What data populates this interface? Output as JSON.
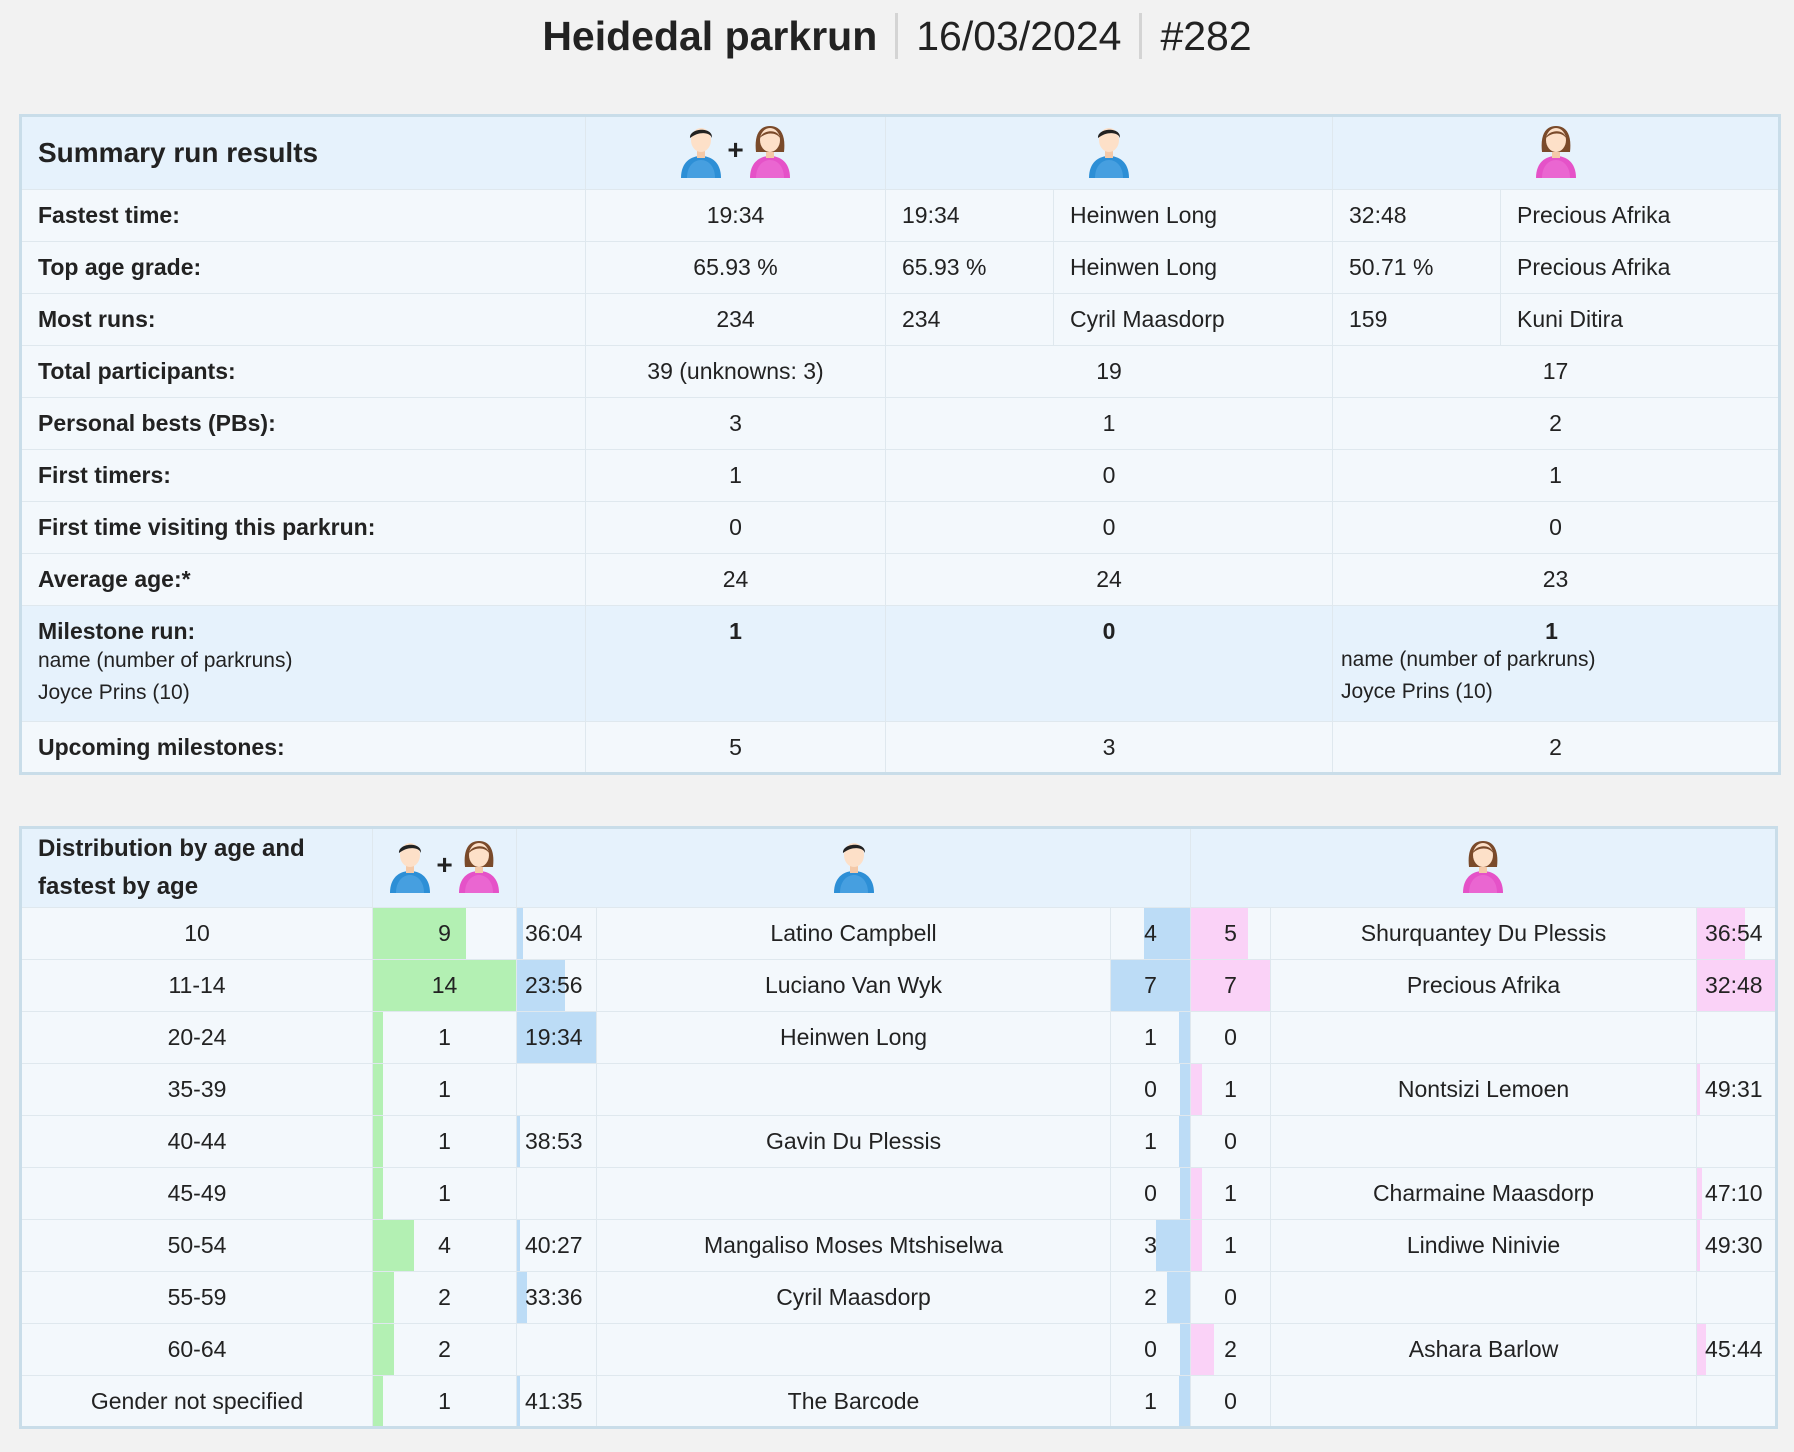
{
  "header": {
    "event_name": "Heidedal parkrun",
    "date": "16/03/2024",
    "event_number": "#282"
  },
  "summary": {
    "title": "Summary run results",
    "plus": "+",
    "rows": [
      {
        "label": "Fastest time:",
        "all": "19:34",
        "m_val": "19:34",
        "m_name": "Heinwen Long",
        "f_val": "32:48",
        "f_name": "Precious Afrika"
      },
      {
        "label": "Top age grade:",
        "all": "65.93 %",
        "m_val": "65.93 %",
        "m_name": "Heinwen Long",
        "f_val": "50.71 %",
        "f_name": "Precious Afrika"
      },
      {
        "label": "Most runs:",
        "all": "234",
        "m_val": "234",
        "m_name": "Cyril Maasdorp",
        "f_val": "159",
        "f_name": "Kuni Ditira"
      },
      {
        "label": "Total participants:",
        "all": "39 (unknowns: 3)",
        "m": "19",
        "f": "17"
      },
      {
        "label": "Personal bests (PBs):",
        "all": "3",
        "m": "1",
        "f": "2"
      },
      {
        "label": "First timers:",
        "all": "1",
        "m": "0",
        "f": "1"
      },
      {
        "label": "First time visiting this parkrun:",
        "all": "0",
        "m": "0",
        "f": "0"
      },
      {
        "label": "Average age:*",
        "all": "24",
        "m": "24",
        "f": "23"
      }
    ],
    "milestone": {
      "label": "Milestone run:",
      "sub1": "name (number of parkruns)",
      "sub2": "Joyce Prins (10)",
      "all": "1",
      "m": "0",
      "f": "1",
      "f_sub1": "name (number of parkruns)",
      "f_sub2": "Joyce Prins (10)"
    },
    "upcoming": {
      "label": "Upcoming milestones:",
      "all": "5",
      "m": "3",
      "f": "2"
    }
  },
  "distribution": {
    "title_line1": "Distribution by age and",
    "title_line2": "fastest by age",
    "plus": "+",
    "max_total": 14,
    "max_gender": 7,
    "rows": [
      {
        "age": "10",
        "total": "9",
        "m_time": "36:04",
        "m_name": "Latino Campbell",
        "m_count": "4",
        "f_count": "5",
        "f_name": "Shurquantey Du Plessis",
        "f_time": "36:54"
      },
      {
        "age": "11-14",
        "total": "14",
        "m_time": "23:56",
        "m_name": "Luciano Van Wyk",
        "m_count": "7",
        "f_count": "7",
        "f_name": "Precious Afrika",
        "f_time": "32:48"
      },
      {
        "age": "20-24",
        "total": "1",
        "m_time": "19:34",
        "m_name": "Heinwen Long",
        "m_count": "1",
        "f_count": "0",
        "f_name": "",
        "f_time": ""
      },
      {
        "age": "35-39",
        "total": "1",
        "m_time": "",
        "m_name": "",
        "m_count": "0",
        "f_count": "1",
        "f_name": "Nontsizi Lemoen",
        "f_time": "49:31"
      },
      {
        "age": "40-44",
        "total": "1",
        "m_time": "38:53",
        "m_name": "Gavin Du Plessis",
        "m_count": "1",
        "f_count": "0",
        "f_name": "",
        "f_time": ""
      },
      {
        "age": "45-49",
        "total": "1",
        "m_time": "",
        "m_name": "",
        "m_count": "0",
        "f_count": "1",
        "f_name": "Charmaine Maasdorp",
        "f_time": "47:10"
      },
      {
        "age": "50-54",
        "total": "4",
        "m_time": "40:27",
        "m_name": "Mangaliso Moses Mtshiselwa",
        "m_count": "3",
        "f_count": "1",
        "f_name": "Lindiwe Ninivie",
        "f_time": "49:30"
      },
      {
        "age": "55-59",
        "total": "2",
        "m_time": "33:36",
        "m_name": "Cyril Maasdorp",
        "m_count": "2",
        "f_count": "0",
        "f_name": "",
        "f_time": ""
      },
      {
        "age": "60-64",
        "total": "2",
        "m_time": "",
        "m_name": "",
        "m_count": "0",
        "f_count": "2",
        "f_name": "Ashara Barlow",
        "f_time": "45:44"
      },
      {
        "age": "Gender not specified",
        "total": "1",
        "m_time": "41:35",
        "m_name": "The Barcode",
        "m_count": "1",
        "f_count": "0",
        "f_name": "",
        "f_time": ""
      }
    ],
    "time_bar_fraction": {
      "36:04": 0.07,
      "23:56": 0.6,
      "19:34": 1.0,
      "38:53": 0.03,
      "40:27": 0.02,
      "33:36": 0.12,
      "41:35": 0.02,
      "36:54": 0.6,
      "32:48": 1.0,
      "49:31": 0.03,
      "47:10": 0.06,
      "49:30": 0.03,
      "45:44": 0.11
    }
  },
  "colors": {
    "total_bar": "#b3f0b3",
    "male_bar": "#bcdcf6",
    "female_bar": "#fad2f7",
    "header_bg": "#e6f2fc"
  }
}
